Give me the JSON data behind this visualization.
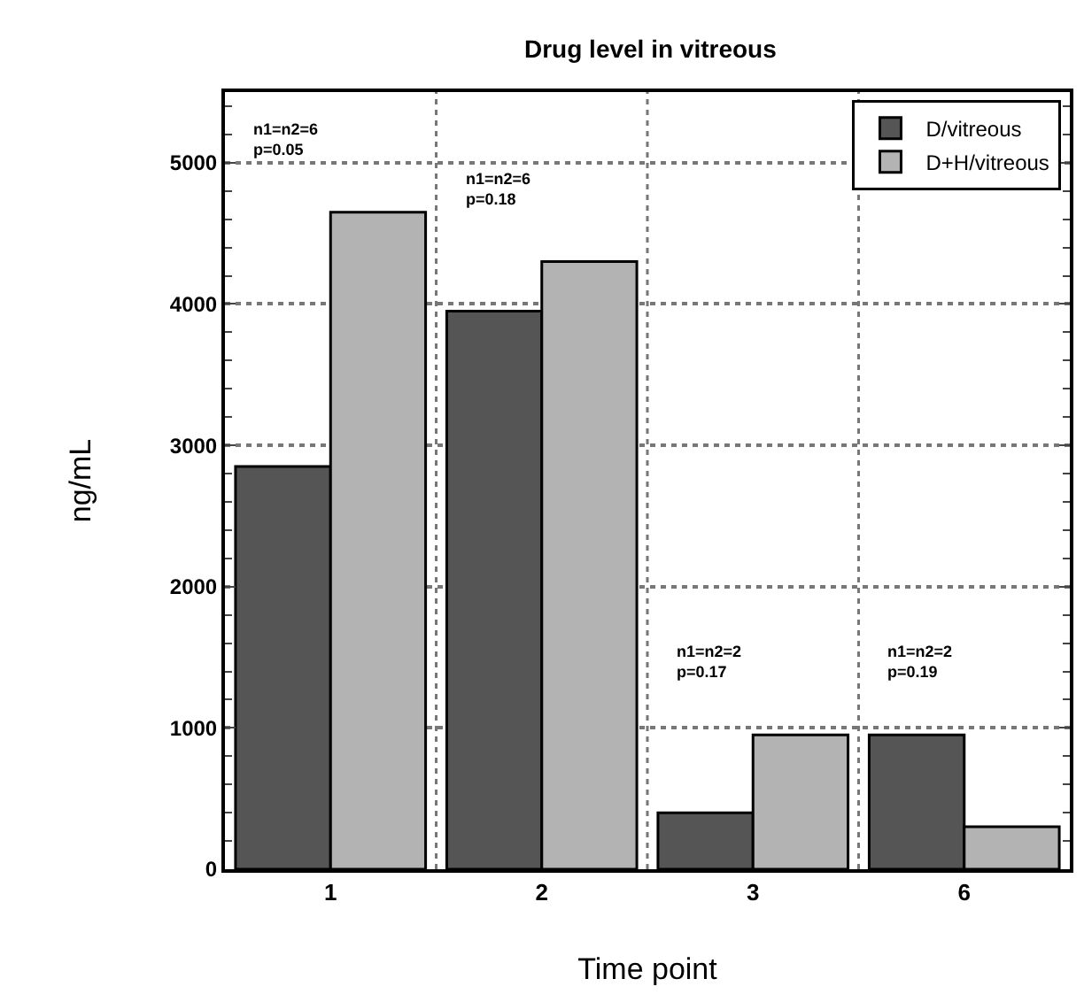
{
  "chart_data": {
    "type": "bar",
    "title": "Drug level in vitreous",
    "xlabel": "Time point",
    "ylabel": "ng/mL",
    "categories": [
      "1",
      "2",
      "3",
      "6"
    ],
    "series": [
      {
        "name": "D/vitreous",
        "color": "#555555",
        "values": [
          2850,
          3950,
          400,
          950
        ]
      },
      {
        "name": "D+H/vitreous",
        "color": "#b3b3b3",
        "values": [
          4650,
          4300,
          950,
          300
        ]
      }
    ],
    "ylim": [
      0,
      5500
    ],
    "yticks": [
      0,
      1000,
      2000,
      3000,
      4000,
      5000
    ],
    "grid": true,
    "legend": "top right",
    "annotations": [
      "n1=n2=6\np=0.05",
      "n1=n2=6\np=0.18",
      "n1=n2=2\np=0.17",
      "n1=n2=2\np=0.19"
    ]
  }
}
